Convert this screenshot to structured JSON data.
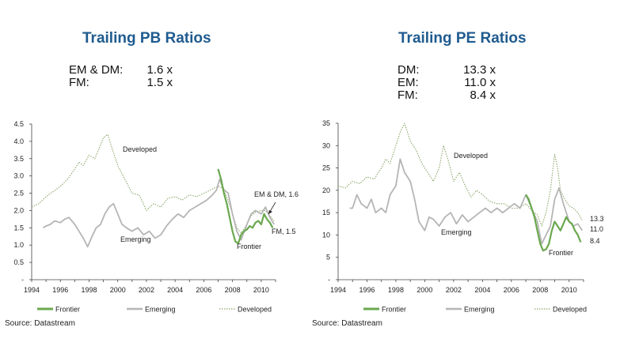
{
  "chart_data": [
    {
      "type": "line",
      "title": "Trailing PB Ratios",
      "summary": [
        {
          "label": "EM & DM:",
          "value": "1.6 x"
        },
        {
          "label": "FM:",
          "value": "1.5 x"
        }
      ],
      "ylim": [
        0,
        4.5
      ],
      "yticks": [
        "-",
        "0.5",
        "1.0",
        "1.5",
        "2.0",
        "2.5",
        "3.0",
        "3.5",
        "4.0",
        "4.5"
      ],
      "xlim": [
        1994,
        2011
      ],
      "xticks": [
        "1994",
        "1996",
        "1998",
        "2000",
        "2002",
        "2004",
        "2006",
        "2008",
        "2010"
      ],
      "annotations": {
        "developed": "Developed",
        "emerging": "Emerging",
        "frontier": "Frontier",
        "emdm": "EM & DM, 1.6",
        "fm": "FM, 1.5"
      },
      "legend": [
        "Frontier",
        "Emerging",
        "Developed"
      ],
      "source": "Source: Datastream",
      "series": [
        {
          "name": "Developed",
          "color": "#8ca86c",
          "style": "dotted",
          "x": [
            1994.0,
            1994.5,
            1995.0,
            1995.5,
            1996.0,
            1996.5,
            1997.0,
            1997.3,
            1997.6,
            1998.0,
            1998.4,
            1998.8,
            1999.0,
            1999.3,
            1999.6,
            2000.0,
            2000.5,
            2001.0,
            2001.5,
            2002.0,
            2002.5,
            2003.0,
            2003.5,
            2004.0,
            2004.5,
            2005.0,
            2005.5,
            2006.0,
            2006.5,
            2007.0,
            2007.3,
            2007.6,
            2008.0,
            2008.3,
            2008.6,
            2009.0,
            2009.3,
            2009.6,
            2010.0,
            2010.3,
            2010.6,
            2010.9
          ],
          "y": [
            2.1,
            2.2,
            2.4,
            2.55,
            2.7,
            2.9,
            3.2,
            3.4,
            3.3,
            3.6,
            3.5,
            3.9,
            4.1,
            4.2,
            3.8,
            3.3,
            2.9,
            2.5,
            2.45,
            2.0,
            2.2,
            2.1,
            2.35,
            2.4,
            2.3,
            2.45,
            2.4,
            2.5,
            2.6,
            2.7,
            2.65,
            2.4,
            1.9,
            1.5,
            1.35,
            1.6,
            1.85,
            1.95,
            2.0,
            2.0,
            1.85,
            1.7
          ]
        },
        {
          "name": "Emerging",
          "color": "#b5b5b5",
          "style": "solid",
          "x": [
            1994.8,
            1995.0,
            1995.3,
            1995.6,
            1996.0,
            1996.3,
            1996.6,
            1997.0,
            1997.3,
            1997.6,
            1997.9,
            1998.2,
            1998.5,
            1998.8,
            1999.1,
            1999.4,
            1999.7,
            2000.0,
            2000.3,
            2000.6,
            2001.0,
            2001.4,
            2001.8,
            2002.2,
            2002.6,
            2003.0,
            2003.4,
            2003.8,
            2004.2,
            2004.6,
            2005.0,
            2005.4,
            2005.8,
            2006.2,
            2006.6,
            2006.9,
            2007.1,
            2007.4,
            2007.7,
            2008.0,
            2008.3,
            2008.6,
            2009.0,
            2009.3,
            2009.6,
            2010.0,
            2010.3,
            2010.6,
            2010.9
          ],
          "y": [
            1.5,
            1.55,
            1.6,
            1.7,
            1.65,
            1.75,
            1.8,
            1.6,
            1.4,
            1.2,
            0.95,
            1.25,
            1.5,
            1.6,
            1.9,
            2.1,
            2.2,
            1.9,
            1.6,
            1.5,
            1.4,
            1.5,
            1.3,
            1.4,
            1.2,
            1.3,
            1.55,
            1.75,
            1.9,
            1.8,
            2.0,
            2.1,
            2.2,
            2.3,
            2.45,
            2.6,
            2.9,
            2.6,
            2.5,
            1.9,
            1.4,
            1.15,
            1.6,
            1.9,
            2.0,
            1.9,
            2.1,
            1.8,
            1.6
          ]
        },
        {
          "name": "Frontier",
          "color": "#6aa84f",
          "style": "solid",
          "x": [
            2007.0,
            2007.2,
            2007.4,
            2007.6,
            2007.8,
            2008.0,
            2008.2,
            2008.4,
            2008.6,
            2008.8,
            2009.0,
            2009.2,
            2009.4,
            2009.6,
            2009.8,
            2010.0,
            2010.2,
            2010.4,
            2010.6,
            2010.8
          ],
          "y": [
            3.2,
            2.9,
            2.5,
            2.2,
            1.8,
            1.4,
            1.1,
            1.05,
            1.3,
            1.4,
            1.45,
            1.55,
            1.5,
            1.65,
            1.7,
            1.6,
            1.9,
            1.75,
            1.65,
            1.5
          ]
        }
      ]
    },
    {
      "type": "line",
      "title": "Trailing PE Ratios",
      "summary": [
        {
          "label": "DM:",
          "value": "13.3 x"
        },
        {
          "label": "EM:",
          "value": "11.0 x"
        },
        {
          "label": "FM:",
          "value": "8.4 x"
        }
      ],
      "ylim": [
        0,
        35
      ],
      "yticks": [
        "-",
        "5",
        "10",
        "15",
        "20",
        "25",
        "30",
        "35"
      ],
      "xlim": [
        1994,
        2011
      ],
      "xticks": [
        "1994",
        "1996",
        "1998",
        "2000",
        "2002",
        "2004",
        "2006",
        "2008",
        "2010"
      ],
      "annotations": {
        "developed": "Developed",
        "emerging": "Emerging",
        "frontier": "Frontier",
        "end1": "13.3",
        "end2": "11.0",
        "end3": "8.4"
      },
      "legend": [
        "Frontier",
        "Emerging",
        "Developed"
      ],
      "source": "Source: Datastream",
      "series": [
        {
          "name": "Developed",
          "color": "#8ca86c",
          "style": "dotted",
          "x": [
            1994.0,
            1994.5,
            1995.0,
            1995.5,
            1996.0,
            1996.5,
            1997.0,
            1997.3,
            1997.6,
            1998.0,
            1998.3,
            1998.6,
            1999.0,
            1999.4,
            1999.8,
            2000.2,
            2000.6,
            2001.0,
            2001.3,
            2001.6,
            2002.0,
            2002.4,
            2002.8,
            2003.2,
            2003.6,
            2004.0,
            2004.5,
            2005.0,
            2005.5,
            2006.0,
            2006.5,
            2007.0,
            2007.4,
            2007.8,
            2008.1,
            2008.4,
            2008.7,
            2009.0,
            2009.2,
            2009.4,
            2009.7,
            2010.0,
            2010.3,
            2010.6,
            2010.9
          ],
          "y": [
            21,
            20.5,
            22,
            21.5,
            23,
            22.5,
            25,
            27,
            26,
            30,
            33,
            35,
            31,
            29,
            26,
            24,
            22,
            25,
            30,
            27,
            22,
            24,
            21,
            18.5,
            20,
            19,
            17.5,
            17,
            17,
            16,
            16,
            17,
            15.5,
            14.5,
            12,
            15,
            20,
            28,
            25,
            20,
            18,
            16.5,
            16,
            15,
            13.3
          ]
        },
        {
          "name": "Emerging",
          "color": "#b5b5b5",
          "style": "solid",
          "x": [
            1994.8,
            1995.0,
            1995.3,
            1995.6,
            1996.0,
            1996.3,
            1996.6,
            1997.0,
            1997.3,
            1997.6,
            1998.0,
            1998.3,
            1998.6,
            1999.0,
            1999.3,
            1999.6,
            2000.0,
            2000.3,
            2000.6,
            2001.0,
            2001.4,
            2001.8,
            2002.2,
            2002.6,
            2003.0,
            2003.4,
            2003.8,
            2004.2,
            2004.6,
            2005.0,
            2005.4,
            2005.8,
            2006.2,
            2006.6,
            2007.0,
            2007.4,
            2007.8,
            2008.1,
            2008.4,
            2008.7,
            2009.0,
            2009.3,
            2009.6,
            2010.0,
            2010.3,
            2010.6,
            2010.9
          ],
          "y": [
            16,
            16,
            19,
            17,
            16,
            18,
            15,
            16,
            15,
            19,
            21,
            27,
            24,
            22,
            18,
            13,
            11,
            14,
            13.5,
            12,
            14,
            15,
            12.5,
            14.5,
            13,
            14,
            15,
            16,
            15,
            16,
            15,
            16,
            17,
            16,
            19,
            16,
            13,
            8,
            10,
            12,
            18,
            20.5,
            17,
            13,
            12,
            12.5,
            11
          ]
        },
        {
          "name": "Frontier",
          "color": "#6aa84f",
          "style": "solid",
          "x": [
            2007.0,
            2007.2,
            2007.4,
            2007.6,
            2007.8,
            2008.0,
            2008.2,
            2008.4,
            2008.6,
            2008.8,
            2009.0,
            2009.2,
            2009.4,
            2009.6,
            2009.8,
            2010.0,
            2010.2,
            2010.4,
            2010.6,
            2010.8
          ],
          "y": [
            19,
            18,
            16,
            14,
            11,
            8,
            6.5,
            6.8,
            8,
            11,
            13,
            12,
            11,
            12.5,
            14,
            13,
            12.5,
            11,
            10,
            8.4
          ]
        }
      ]
    }
  ]
}
